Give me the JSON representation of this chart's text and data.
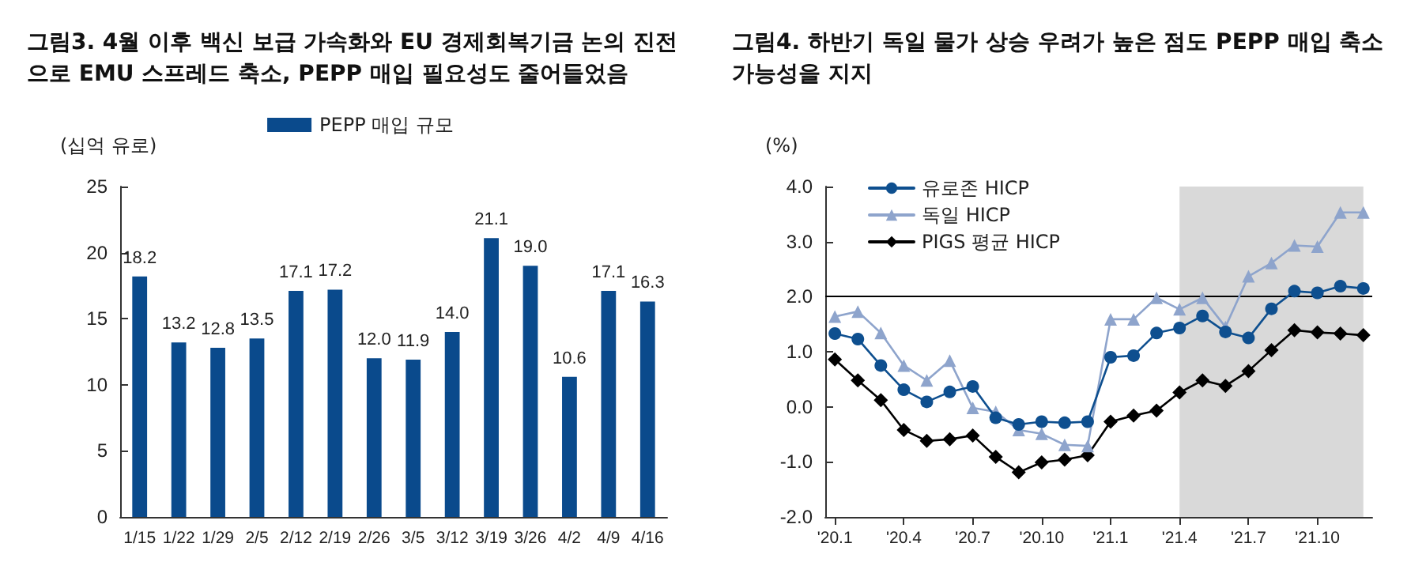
{
  "chart_data": [
    {
      "type": "bar",
      "title": "그림3. 4월 이후 백신 보급 가속화와 EU 경제회복기금 논의 진전으로 EMU 스프레드 축소, PEPP 매입 필요성도 줄어들었음",
      "ylabel": "(십억 유로)",
      "categories": [
        "1/15",
        "1/22",
        "1/29",
        "2/5",
        "2/12",
        "2/19",
        "2/26",
        "3/5",
        "3/12",
        "3/19",
        "3/26",
        "4/2",
        "4/9",
        "4/16"
      ],
      "series": [
        {
          "name": "PEPP 매입 규모",
          "color": "#0a4a8c",
          "values": [
            18.2,
            13.2,
            12.8,
            13.5,
            17.1,
            17.2,
            12.0,
            11.9,
            14.0,
            21.1,
            19.0,
            10.6,
            17.1,
            16.3
          ],
          "value_labels": [
            "18.2",
            "13.2",
            "12.8",
            "13.5",
            "17.1",
            "17.2",
            "12.0",
            "11.9",
            "14.0",
            "21.1",
            "19.0",
            "10.6",
            "17.1",
            "16.3"
          ]
        }
      ],
      "ylim": [
        0,
        25
      ],
      "yticks": [
        0,
        5,
        10,
        15,
        20,
        25
      ],
      "grid": false,
      "legend": "top"
    },
    {
      "type": "line",
      "title": "그림4. 하반기 독일 물가 상승 우려가 높은 점도 PEPP 매입 축소 가능성을 지지",
      "ylabel": "(%)",
      "x": [
        "2020-01",
        "2020-02",
        "2020-03",
        "2020-04",
        "2020-05",
        "2020-06",
        "2020-07",
        "2020-08",
        "2020-09",
        "2020-10",
        "2020-11",
        "2020-12",
        "2021-01",
        "2021-02",
        "2021-03",
        "2021-04",
        "2021-05",
        "2021-06",
        "2021-07",
        "2021-08",
        "2021-09",
        "2021-10",
        "2021-11",
        "2021-12"
      ],
      "xlim": [
        "2019-12-19",
        "2021-12-13"
      ],
      "xticks": [
        {
          "value": "2020-01",
          "label": "'20.1"
        },
        {
          "value": "2020-04",
          "label": "'20.4"
        },
        {
          "value": "2020-07",
          "label": "'20.7"
        },
        {
          "value": "2020-10",
          "label": "'20.10"
        },
        {
          "value": "2021-01",
          "label": "'21.1"
        },
        {
          "value": "2021-04",
          "label": "'21.4"
        },
        {
          "value": "2021-07",
          "label": "'21.7"
        },
        {
          "value": "2021-10",
          "label": "'21.10"
        }
      ],
      "series": [
        {
          "name": "유로존 HICP",
          "color": "#0e4f8f",
          "marker": "circle",
          "values": [
            1.33,
            1.23,
            0.75,
            0.31,
            0.09,
            0.27,
            0.37,
            -0.2,
            -0.32,
            -0.27,
            -0.29,
            -0.27,
            0.9,
            0.93,
            1.34,
            1.43,
            1.65,
            1.36,
            1.25,
            1.78,
            2.1,
            2.07,
            2.19,
            2.15
          ]
        },
        {
          "name": "독일 HICP",
          "color": "#8ea4cc",
          "marker": "triangle",
          "values": [
            1.64,
            1.73,
            1.34,
            0.75,
            0.48,
            0.84,
            -0.02,
            -0.09,
            -0.42,
            -0.49,
            -0.69,
            -0.71,
            1.59,
            1.59,
            1.98,
            1.77,
            1.98,
            1.45,
            2.37,
            2.61,
            2.93,
            2.91,
            3.53,
            3.53
          ]
        },
        {
          "name": "PIGS 평균 HICP",
          "color": "#000000",
          "marker": "diamond",
          "values": [
            0.86,
            0.48,
            0.12,
            -0.42,
            -0.62,
            -0.59,
            -0.52,
            -0.91,
            -1.19,
            -1.01,
            -0.96,
            -0.88,
            -0.27,
            -0.16,
            -0.07,
            0.26,
            0.48,
            0.38,
            0.65,
            1.03,
            1.39,
            1.35,
            1.33,
            1.3
          ]
        }
      ],
      "ylim": [
        -2,
        4
      ],
      "yticks": [
        {
          "value": -2,
          "label": "-2.0"
        },
        {
          "value": -1,
          "label": "-1.0"
        },
        {
          "value": 0,
          "label": "0.0"
        },
        {
          "value": 1,
          "label": "1.0"
        },
        {
          "value": 2,
          "label": "2.0"
        },
        {
          "value": 3,
          "label": "3.0"
        },
        {
          "value": 4,
          "label": "4.0"
        }
      ],
      "ref_lines": [
        {
          "axis": "y",
          "value": 2,
          "color": "#000000"
        }
      ],
      "bands": [
        {
          "axis": "x",
          "from": "2021-04",
          "to": "2021-12",
          "color": "#d9d9d9"
        }
      ],
      "grid": false,
      "legend": "top left"
    }
  ]
}
